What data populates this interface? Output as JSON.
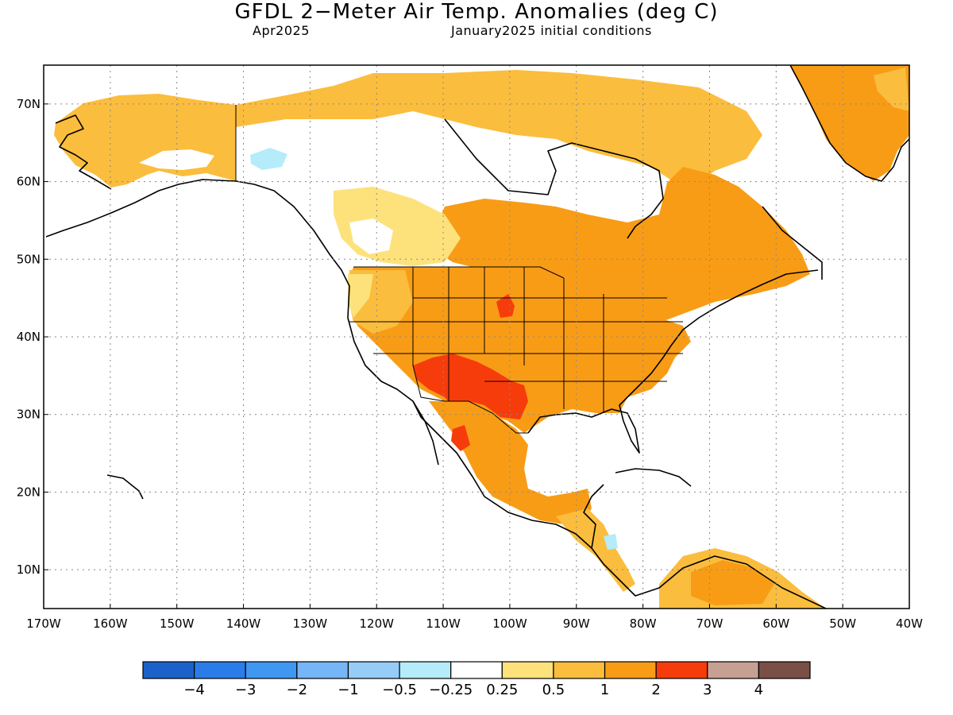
{
  "header": {
    "title": "GFDL 2−Meter Air Temp. Anomalies (deg C)",
    "valid_month": "Apr2025",
    "initial_conditions": "January2025 initial conditions"
  },
  "map": {
    "lon_range": [
      -170,
      -40
    ],
    "lat_range": [
      5,
      75
    ],
    "lat_ticks": [
      "10N",
      "20N",
      "30N",
      "40N",
      "50N",
      "60N",
      "70N"
    ],
    "lon_ticks": [
      "170W",
      "160W",
      "150W",
      "140W",
      "130W",
      "120W",
      "110W",
      "100W",
      "90W",
      "80W",
      "70W",
      "60W",
      "50W",
      "40W"
    ],
    "gridlines": "dotted",
    "ocean_color": "#ffffff",
    "coast_color": "#000000"
  },
  "legend": {
    "colors": [
      "#1a62c9",
      "#2a7de8",
      "#3f97f2",
      "#76b6f7",
      "#96cdf8",
      "#b4ecfa",
      "#ffffff",
      "#fde27c",
      "#fbbd3d",
      "#f89c16",
      "#f73c0b",
      "#c7a094",
      "#7a4f45"
    ],
    "labels": [
      "−4",
      "−3",
      "−2",
      "−1",
      "−0.5",
      "−0.25",
      "0.25",
      "0.5",
      "1",
      "2",
      "3",
      "4"
    ]
  }
}
